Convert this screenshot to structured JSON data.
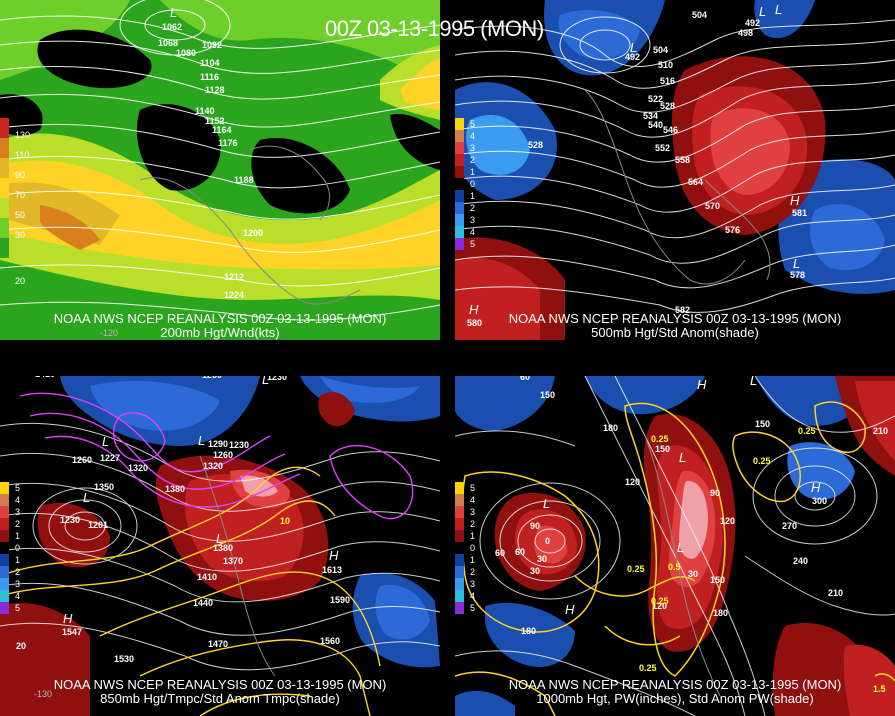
{
  "header": {
    "title": "00Z 03-13-1995 (MON)"
  },
  "panels": [
    {
      "id": "jet200",
      "source": "NOAA NWS NCEP REANALYSIS 00Z 03-13-1995 (MON)",
      "field": "200mb Hgt/Wnd(kts)",
      "legend": [
        "130",
        "110",
        "90",
        "70",
        "50",
        "30",
        "20"
      ],
      "legend_colors": [
        "#c8261c",
        "#d8801e",
        "#e0b828",
        "#ffd326",
        "#b9df2b",
        "#6fcf2a",
        "#2aa51d"
      ],
      "labels": [
        "1062",
        "1068",
        "1080",
        "1092",
        "1104",
        "1116",
        "1128",
        "1140",
        "1152",
        "1164",
        "1176",
        "1188",
        "1200",
        "1212",
        "1224",
        "-120"
      ],
      "highs_lows": [
        "L"
      ]
    },
    {
      "id": "h500",
      "source": "NOAA NWS NCEP REANALYSIS 00Z 03-13-1995 (MON)",
      "field": "500mb Hgt/Std Anom(shade)",
      "legend": [
        "5",
        "4",
        "3",
        "2",
        "1",
        "0",
        "1",
        "2",
        "3",
        "4",
        "5"
      ],
      "legend_colors": [
        "#ffd700",
        "#d08050",
        "#e04040",
        "#c02020",
        "#901010",
        "#000000",
        "#1040a0",
        "#2c6ad8",
        "#3a9cf0",
        "#2ec0d8",
        "#8a2ad8"
      ],
      "labels": [
        "504",
        "492",
        "498",
        "492",
        "504",
        "510",
        "516",
        "522",
        "528",
        "534",
        "540",
        "546",
        "552",
        "558",
        "564",
        "570",
        "576",
        "582",
        "528",
        "581",
        "578",
        "580"
      ],
      "highs_lows": [
        "L",
        "L",
        "L",
        "H",
        "L",
        "H"
      ]
    },
    {
      "id": "h850",
      "source": "NOAA NWS NCEP REANALYSIS 00Z 03-13-1995 (MON)",
      "field": "850mb Hgt/Tmpc/Std Anom Tmpc(shade)",
      "legend": [
        "5",
        "4",
        "3",
        "2",
        "1",
        "0",
        "1",
        "2",
        "3",
        "4",
        "5"
      ],
      "legend_colors": [
        "#ffd700",
        "#d08050",
        "#e04040",
        "#c02020",
        "#901010",
        "#000000",
        "#1040a0",
        "#2c6ad8",
        "#3a9cf0",
        "#2ec0d8",
        "#8a2ad8"
      ],
      "labels": [
        "1410",
        "1260",
        "1230",
        "1260",
        "1227",
        "1320",
        "1350",
        "1380",
        "1290",
        "1230",
        "1260",
        "1320",
        "1230",
        "1201",
        "1380",
        "1410",
        "1440",
        "1470",
        "1530",
        "1560",
        "1590",
        "1547",
        "1613",
        "1370",
        "20",
        "-130",
        "10"
      ],
      "highs_lows": [
        "L",
        "L",
        "L",
        "H",
        "H",
        "L",
        "L"
      ]
    },
    {
      "id": "pw1000",
      "source": "NOAA NWS NCEP REANALYSIS 00Z 03-13-1995 (MON)",
      "field": "1000mb Hgt, PW(inches), Std Anom PW(shade)",
      "legend": [
        "5",
        "4",
        "3",
        "2",
        "1",
        "0",
        "1",
        "2",
        "3",
        "4",
        "5"
      ],
      "legend_colors": [
        "#ffd700",
        "#d08050",
        "#e04040",
        "#c02020",
        "#901010",
        "#000000",
        "#1040a0",
        "#2c6ad8",
        "#3a9cf0",
        "#2ec0d8",
        "#8a2ad8"
      ],
      "labels": [
        "60",
        "150",
        "180",
        "150",
        "120",
        "90",
        "60",
        "30",
        "0",
        "30",
        "60",
        "120",
        "150",
        "180",
        "120",
        "90",
        "150",
        "240",
        "270",
        "210",
        "300",
        "210",
        "180",
        "30"
      ],
      "pw_labels": [
        "0.25",
        "0.25",
        "0.25",
        "0.5",
        "0.25",
        "0.25",
        "0.25",
        "1.5"
      ],
      "highs_lows": [
        "L",
        "H",
        "L",
        "H",
        "L",
        "H",
        "L"
      ]
    }
  ]
}
